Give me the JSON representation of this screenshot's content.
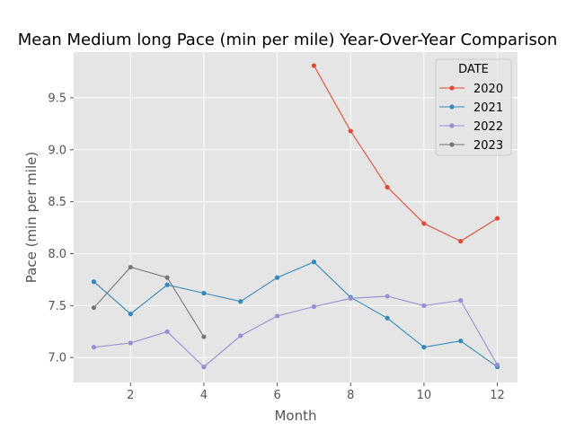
{
  "chart_data": {
    "type": "line",
    "title": "Mean Medium long Pace (min per mile) Year-Over-Year Comparison",
    "xlabel": "Month",
    "ylabel": "Pace (min per mile)",
    "xlim": [
      0.45,
      12.55
    ],
    "ylim": [
      6.76,
      9.94
    ],
    "xticks": [
      2,
      4,
      6,
      8,
      10,
      12
    ],
    "yticks": [
      7.0,
      7.5,
      8.0,
      8.5,
      9.0,
      9.5
    ],
    "grid": true,
    "legend": {
      "title": "DATE",
      "placement": "top-right"
    },
    "series": [
      {
        "name": "2020",
        "color": "#E24A33",
        "x": [
          7,
          8,
          9,
          10,
          11,
          12
        ],
        "values": [
          9.81,
          9.18,
          8.64,
          8.29,
          8.12,
          8.34
        ]
      },
      {
        "name": "2021",
        "color": "#348ABD",
        "x": [
          1,
          2,
          3,
          4,
          5,
          6,
          7,
          8,
          9,
          10,
          11,
          12
        ],
        "values": [
          7.73,
          7.42,
          7.7,
          7.62,
          7.54,
          7.77,
          7.92,
          7.58,
          7.38,
          7.1,
          7.16,
          6.91
        ]
      },
      {
        "name": "2022",
        "color": "#988ED5",
        "x": [
          1,
          2,
          3,
          4,
          5,
          6,
          7,
          8,
          9,
          10,
          11,
          12
        ],
        "values": [
          7.1,
          7.14,
          7.25,
          6.91,
          7.21,
          7.4,
          7.49,
          7.57,
          7.59,
          7.5,
          7.55,
          6.93
        ]
      },
      {
        "name": "2023",
        "color": "#777777",
        "x": [
          1,
          2,
          3,
          4
        ],
        "values": [
          7.48,
          7.87,
          7.77,
          7.2
        ]
      }
    ]
  }
}
